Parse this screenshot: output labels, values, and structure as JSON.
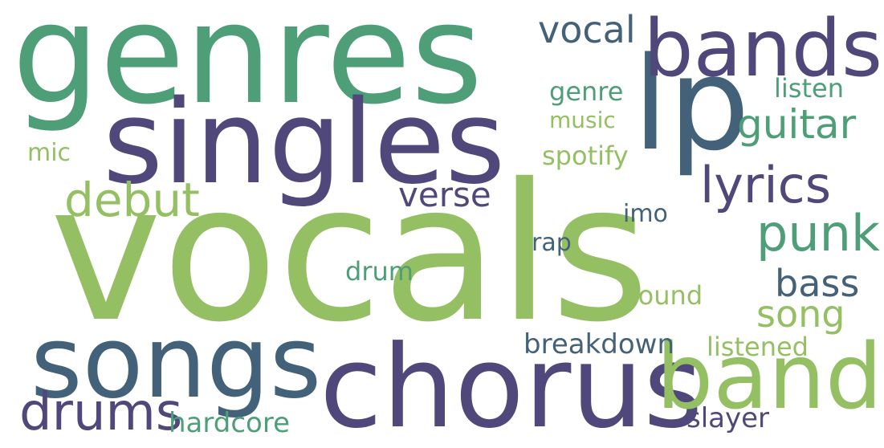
{
  "palette": {
    "light_green": "#94BF63",
    "teal_green": "#4E9E78",
    "slate_blue": "#43627A",
    "indigo": "#50487A"
  },
  "words": [
    {
      "text": "vocals",
      "weight": 1.0,
      "color": "light_green"
    },
    {
      "text": "genres",
      "weight": 0.72,
      "color": "teal_green"
    },
    {
      "text": "singles",
      "weight": 0.62,
      "color": "indigo"
    },
    {
      "text": "chorus",
      "weight": 0.62,
      "color": "indigo"
    },
    {
      "text": "lp",
      "weight": 0.6,
      "color": "slate_blue"
    },
    {
      "text": "songs",
      "weight": 0.55,
      "color": "slate_blue"
    },
    {
      "text": "band",
      "weight": 0.5,
      "color": "light_green"
    },
    {
      "text": "bands",
      "weight": 0.43,
      "color": "indigo"
    },
    {
      "text": "drums",
      "weight": 0.32,
      "color": "indigo"
    },
    {
      "text": "lyrics",
      "weight": 0.3,
      "color": "indigo"
    },
    {
      "text": "punk",
      "weight": 0.3,
      "color": "teal_green"
    },
    {
      "text": "debut",
      "weight": 0.29,
      "color": "light_green"
    },
    {
      "text": "guitar",
      "weight": 0.24,
      "color": "teal_green"
    },
    {
      "text": "vocal",
      "weight": 0.23,
      "color": "slate_blue"
    },
    {
      "text": "song",
      "weight": 0.23,
      "color": "light_green"
    },
    {
      "text": "bass",
      "weight": 0.23,
      "color": "slate_blue"
    },
    {
      "text": "verse",
      "weight": 0.21,
      "color": "indigo"
    },
    {
      "text": "breakdown",
      "weight": 0.17,
      "color": "slate_blue"
    },
    {
      "text": "hardcore",
      "weight": 0.17,
      "color": "teal_green"
    },
    {
      "text": "slayer",
      "weight": 0.17,
      "color": "indigo"
    },
    {
      "text": "listened",
      "weight": 0.16,
      "color": "light_green"
    },
    {
      "text": "spotify",
      "weight": 0.15,
      "color": "light_green"
    },
    {
      "text": "listen",
      "weight": 0.15,
      "color": "teal_green"
    },
    {
      "text": "genre",
      "weight": 0.15,
      "color": "teal_green"
    },
    {
      "text": "sound",
      "weight": 0.15,
      "color": "light_green"
    },
    {
      "text": "drum",
      "weight": 0.14,
      "color": "teal_green"
    },
    {
      "text": "music",
      "weight": 0.13,
      "color": "light_green"
    },
    {
      "text": "mic",
      "weight": 0.14,
      "color": "light_green"
    },
    {
      "text": "imo",
      "weight": 0.14,
      "color": "slate_blue"
    },
    {
      "text": "rap",
      "weight": 0.14,
      "color": "slate_blue"
    }
  ]
}
